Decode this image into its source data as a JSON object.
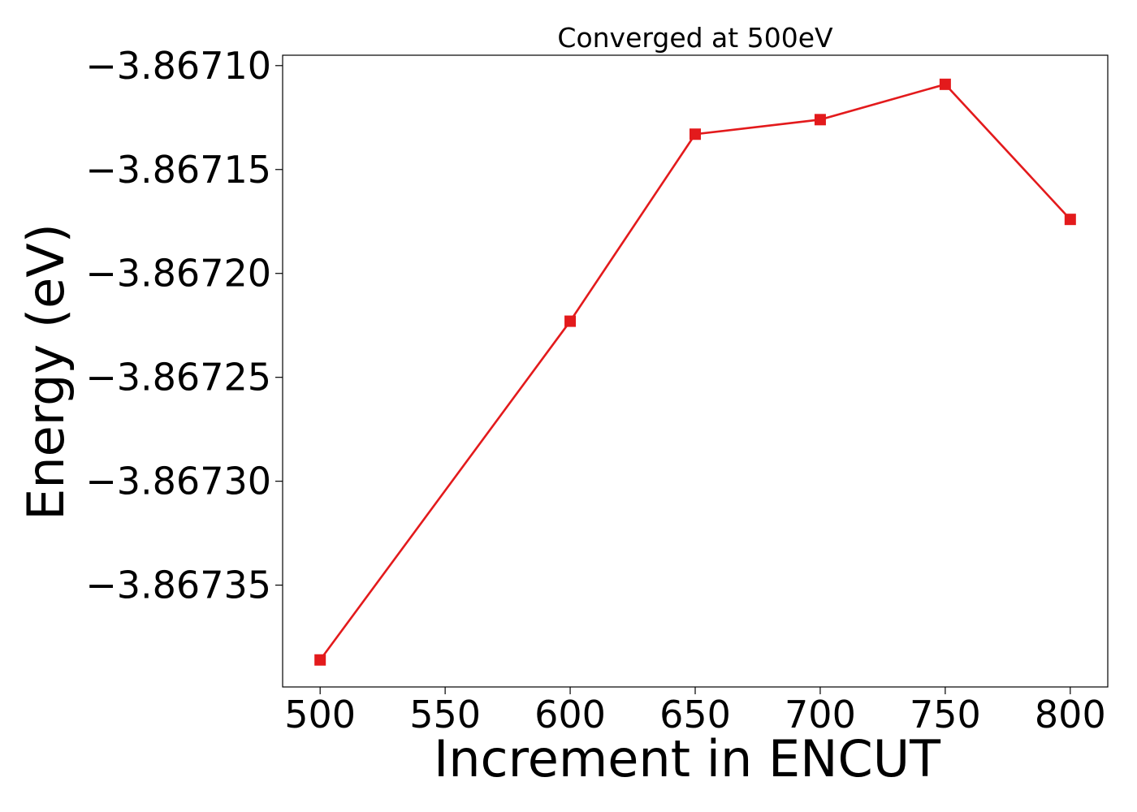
{
  "chart_data": {
    "type": "line",
    "title": "Converged at 500eV",
    "xlabel": "Increment in ENCUT",
    "ylabel": "Energy (eV)",
    "xlim": [
      485,
      815
    ],
    "ylim": [
      -3.867399,
      -3.867095
    ],
    "x_ticks": [
      500,
      550,
      600,
      650,
      700,
      750,
      800
    ],
    "x_tick_labels": [
      "500",
      "550",
      "600",
      "650",
      "700",
      "750",
      "800"
    ],
    "y_ticks": [
      -3.86735,
      -3.8673,
      -3.86725,
      -3.8672,
      -3.86715,
      -3.8671
    ],
    "y_tick_labels": [
      "−3.86735",
      "−3.86730",
      "−3.86725",
      "−3.86720",
      "−3.86715",
      "−3.86710"
    ],
    "grid": false,
    "series": [
      {
        "color": "#e31a1c",
        "marker": "square",
        "x": [
          500,
          600,
          650,
          700,
          750,
          800
        ],
        "y": [
          -3.867386,
          -3.867223,
          -3.867133,
          -3.867126,
          -3.867109,
          -3.867174
        ]
      }
    ]
  }
}
